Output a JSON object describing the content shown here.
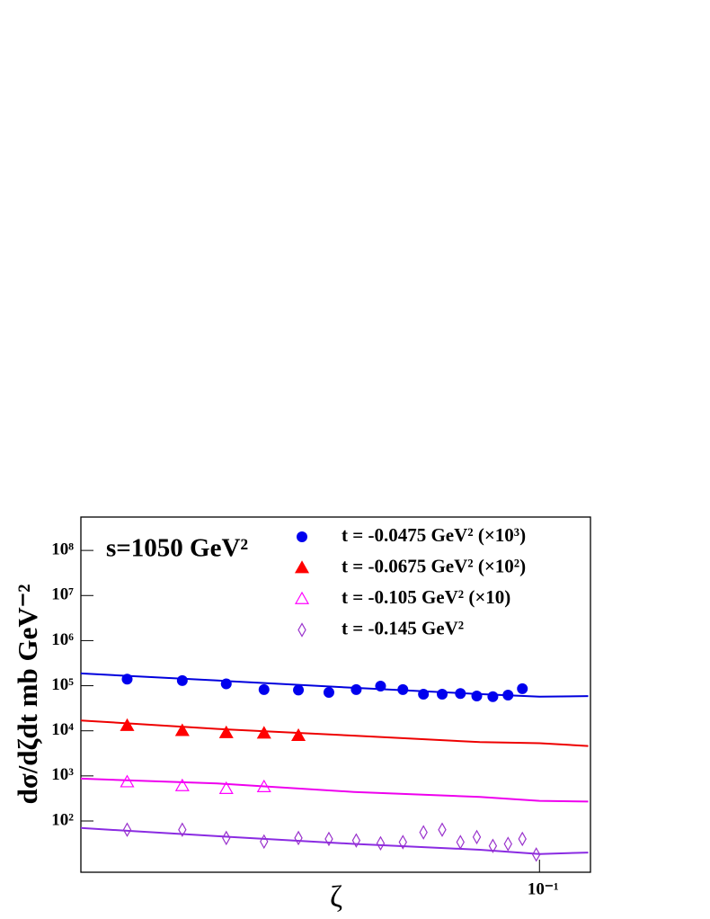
{
  "chart_data": {
    "type": "scatter",
    "annotation": "s=1050 GeV²",
    "x_label": "ζ",
    "y_label": "dσ/dζdt mb GeV⁻²",
    "log_x": true,
    "log_y": true,
    "xlim": [
      0.018,
      0.121
    ],
    "ylim": [
      7.3,
      550000000
    ],
    "xticks": [
      {
        "value": 0.1,
        "label": "10⁻¹"
      }
    ],
    "yticks": [
      {
        "value": 100,
        "label": "10²"
      },
      {
        "value": 1000,
        "label": "10³"
      },
      {
        "value": 10000,
        "label": "10⁴"
      },
      {
        "value": 100000,
        "label": "10⁵"
      },
      {
        "value": 1000000,
        "label": "10⁶"
      },
      {
        "value": 10000000,
        "label": "10⁷"
      },
      {
        "value": 100000000,
        "label": "10⁸"
      }
    ],
    "series": [
      {
        "name": "t = -0.0475 GeV² (×10³)",
        "color": "#0000ee",
        "marker": "circle",
        "x": [
          0.0214,
          0.0263,
          0.031,
          0.0357,
          0.0406,
          0.0455,
          0.0504,
          0.0552,
          0.06,
          0.0648,
          0.0695,
          0.0744,
          0.0791,
          0.084,
          0.0889,
          0.0938
        ],
        "values": [
          140000,
          130000,
          110000,
          82000,
          80000,
          71000,
          82000,
          98000,
          82000,
          65000,
          65000,
          67000,
          59000,
          57000,
          62000,
          86000
        ]
      },
      {
        "name": "t = -0.0675 GeV² (×10²)",
        "color": "#ff0000",
        "marker": "triangle",
        "x": [
          0.0214,
          0.0263,
          0.031,
          0.0357,
          0.0406
        ],
        "values": [
          13000,
          10000,
          9000,
          8800,
          7800
        ]
      },
      {
        "name": "t = -0.105 GeV² (×10)",
        "color": "#ff00ff",
        "marker": "triangle-open",
        "x": [
          0.0214,
          0.0263,
          0.031,
          0.0357
        ],
        "values": [
          730,
          600,
          520,
          570
        ]
      },
      {
        "name": "t = -0.145 GeV²",
        "color": "#9932cc",
        "marker": "diamond-open",
        "x": [
          0.0214,
          0.0263,
          0.031,
          0.0357,
          0.0406,
          0.0455,
          0.0504,
          0.0552,
          0.06,
          0.0648,
          0.0695,
          0.0744,
          0.0791,
          0.084,
          0.0889,
          0.0938,
          0.0988
        ],
        "values": [
          64,
          64,
          42,
          35,
          42,
          40,
          37,
          32,
          34,
          56,
          64,
          34,
          44,
          28,
          31,
          40,
          18
        ]
      }
    ],
    "curves": [
      {
        "color": "#0000dd",
        "x": [
          0.018,
          0.03,
          0.05,
          0.08,
          0.1,
          0.12
        ],
        "values": [
          187000,
          130000,
          90000,
          65000,
          57000,
          59000
        ]
      },
      {
        "color": "#ee0000",
        "x": [
          0.018,
          0.03,
          0.05,
          0.08,
          0.1,
          0.12
        ],
        "values": [
          17000,
          11000,
          7800,
          5600,
          5300,
          4600
        ]
      },
      {
        "color": "#ee00ee",
        "x": [
          0.018,
          0.03,
          0.05,
          0.08,
          0.1,
          0.12
        ],
        "values": [
          870,
          680,
          440,
          340,
          280,
          270
        ]
      },
      {
        "color": "#8a2be2",
        "x": [
          0.018,
          0.03,
          0.05,
          0.08,
          0.1,
          0.12
        ],
        "values": [
          70,
          46,
          31,
          23,
          18.5,
          20
        ]
      }
    ]
  }
}
